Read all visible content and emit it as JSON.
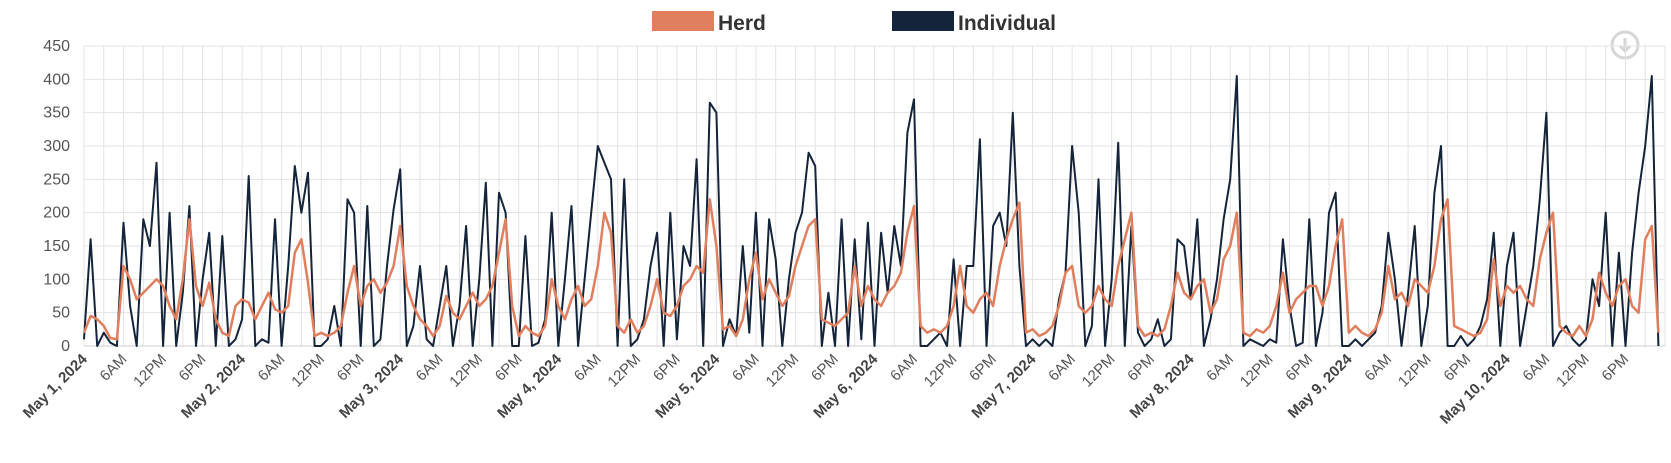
{
  "colors": {
    "herd": "#E07F5E",
    "individual": "#14243A",
    "grid": "#E3E3E3",
    "text": "#555555",
    "download_icon": "#D6D6D6"
  },
  "legend": {
    "herd_label": "Herd",
    "individual_label": "Individual"
  },
  "download_icon": "download-icon",
  "chart_data": {
    "type": "line",
    "title": "",
    "xlabel": "",
    "ylabel": "",
    "ylim": [
      0,
      450
    ],
    "grid": true,
    "legend_position": "top-center",
    "y_ticks": [
      "0",
      "50",
      "100",
      "150",
      "200",
      "250",
      "300",
      "350",
      "400",
      "450"
    ],
    "x_tick_labels": [
      "May 1, 2024",
      "6AM",
      "12PM",
      "6PM",
      "May 2, 2024",
      "6AM",
      "12PM",
      "6PM",
      "May 3, 2024",
      "6AM",
      "12PM",
      "6PM",
      "May 4, 2024",
      "6AM",
      "12PM",
      "6PM",
      "May 5, 2024",
      "6AM",
      "12PM",
      "6PM",
      "May 6, 2024",
      "6AM",
      "12PM",
      "6PM",
      "May 7, 2024",
      "6AM",
      "12PM",
      "6PM",
      "May 8, 2024",
      "6AM",
      "12PM",
      "6PM",
      "May 9, 2024",
      "6AM",
      "12PM",
      "6PM",
      "May 10, 2024",
      "6AM",
      "12PM",
      "6PM"
    ],
    "x_unit": "hours since May 1, 2024 00:00",
    "series": [
      {
        "name": "Herd",
        "color": "#E07F5E",
        "x": [
          0,
          1,
          2,
          3,
          4,
          5,
          6,
          7,
          8,
          9,
          10,
          11,
          12,
          13,
          14,
          15,
          16,
          17,
          18,
          19,
          20,
          21,
          22,
          23,
          24,
          25,
          26,
          27,
          28,
          29,
          30,
          31,
          32,
          33,
          34,
          35,
          36,
          37,
          38,
          39,
          40,
          41,
          42,
          43,
          44,
          45,
          46,
          47,
          48,
          49,
          50,
          51,
          52,
          53,
          54,
          55,
          56,
          57,
          58,
          59,
          60,
          61,
          62,
          63,
          64,
          65,
          66,
          67,
          68,
          69,
          70,
          71,
          72,
          73,
          74,
          75,
          76,
          77,
          78,
          79,
          80,
          81,
          82,
          83,
          84,
          85,
          86,
          87,
          88,
          89,
          90,
          91,
          92,
          93,
          94,
          95,
          96,
          97,
          98,
          99,
          100,
          101,
          102,
          103,
          104,
          105,
          106,
          107,
          108,
          109,
          110,
          111,
          112,
          113,
          114,
          115,
          116,
          117,
          118,
          119,
          120,
          121,
          122,
          123,
          124,
          125,
          126,
          127,
          128,
          129,
          130,
          131,
          132,
          133,
          134,
          135,
          136,
          137,
          138,
          139,
          140,
          141,
          142,
          143,
          144,
          145,
          146,
          147,
          148,
          149,
          150,
          151,
          152,
          153,
          154,
          155,
          156,
          157,
          158,
          159,
          160,
          161,
          162,
          163,
          164,
          165,
          166,
          167,
          168,
          169,
          170,
          171,
          172,
          173,
          174,
          175,
          176,
          177,
          178,
          179,
          180,
          181,
          182,
          183,
          184,
          185,
          186,
          187,
          188,
          189,
          190,
          191,
          192,
          193,
          194,
          195,
          196,
          197,
          198,
          199,
          200,
          201,
          202,
          203,
          204,
          205,
          206,
          207,
          208,
          209,
          210,
          211,
          212,
          213,
          214,
          215,
          216,
          217,
          218,
          219,
          220,
          221,
          222,
          223,
          224,
          225,
          226,
          227,
          228,
          229,
          230,
          231,
          232,
          233,
          234,
          235,
          236,
          237,
          238,
          239
        ],
        "values": [
          20,
          45,
          40,
          30,
          12,
          10,
          120,
          100,
          70,
          80,
          90,
          100,
          90,
          60,
          40,
          100,
          190,
          90,
          60,
          95,
          40,
          20,
          15,
          60,
          70,
          65,
          40,
          60,
          80,
          55,
          50,
          60,
          140,
          160,
          95,
          15,
          20,
          15,
          20,
          30,
          80,
          120,
          60,
          90,
          100,
          80,
          95,
          120,
          180,
          90,
          60,
          40,
          30,
          15,
          30,
          75,
          50,
          40,
          60,
          80,
          60,
          70,
          90,
          140,
          190,
          60,
          15,
          30,
          20,
          15,
          30,
          100,
          60,
          40,
          70,
          90,
          60,
          70,
          120,
          200,
          170,
          30,
          20,
          40,
          20,
          30,
          60,
          100,
          50,
          45,
          60,
          90,
          100,
          120,
          110,
          220,
          150,
          25,
          30,
          15,
          40,
          100,
          140,
          70,
          100,
          80,
          60,
          75,
          120,
          150,
          180,
          190,
          40,
          35,
          30,
          40,
          50,
          120,
          60,
          90,
          70,
          60,
          80,
          90,
          110,
          170,
          210,
          30,
          20,
          25,
          20,
          30,
          60,
          120,
          60,
          50,
          70,
          80,
          60,
          120,
          160,
          190,
          215,
          20,
          25,
          15,
          20,
          30,
          60,
          110,
          120,
          60,
          50,
          60,
          90,
          70,
          60,
          120,
          160,
          200,
          30,
          15,
          20,
          15,
          25,
          60,
          110,
          80,
          70,
          90,
          100,
          50,
          70,
          130,
          150,
          200,
          20,
          15,
          25,
          20,
          30,
          60,
          110,
          50,
          70,
          80,
          90,
          90,
          60,
          90,
          150,
          190,
          20,
          30,
          20,
          15,
          25,
          50,
          120,
          70,
          80,
          60,
          100,
          90,
          80,
          120,
          190,
          220,
          30,
          25,
          20,
          15,
          20,
          40,
          130,
          60,
          90,
          80,
          90,
          70,
          60,
          130,
          170,
          200,
          30,
          20,
          15,
          30,
          15,
          40,
          110,
          80,
          60,
          90,
          100,
          60,
          50,
          160,
          180,
          20
        ]
      },
      {
        "name": "Individual",
        "color": "#14243A",
        "x": [
          0,
          1,
          2,
          3,
          4,
          5,
          6,
          7,
          8,
          9,
          10,
          11,
          12,
          13,
          14,
          15,
          16,
          17,
          18,
          19,
          20,
          21,
          22,
          23,
          24,
          25,
          26,
          27,
          28,
          29,
          30,
          31,
          32,
          33,
          34,
          35,
          36,
          37,
          38,
          39,
          40,
          41,
          42,
          43,
          44,
          45,
          46,
          47,
          48,
          49,
          50,
          51,
          52,
          53,
          54,
          55,
          56,
          57,
          58,
          59,
          60,
          61,
          62,
          63,
          64,
          65,
          66,
          67,
          68,
          69,
          70,
          71,
          72,
          73,
          74,
          75,
          76,
          77,
          78,
          79,
          80,
          81,
          82,
          83,
          84,
          85,
          86,
          87,
          88,
          89,
          90,
          91,
          92,
          93,
          94,
          95,
          96,
          97,
          98,
          99,
          100,
          101,
          102,
          103,
          104,
          105,
          106,
          107,
          108,
          109,
          110,
          111,
          112,
          113,
          114,
          115,
          116,
          117,
          118,
          119,
          120,
          121,
          122,
          123,
          124,
          125,
          126,
          127,
          128,
          129,
          130,
          131,
          132,
          133,
          134,
          135,
          136,
          137,
          138,
          139,
          140,
          141,
          142,
          143,
          144,
          145,
          146,
          147,
          148,
          149,
          150,
          151,
          152,
          153,
          154,
          155,
          156,
          157,
          158,
          159,
          160,
          161,
          162,
          163,
          164,
          165,
          166,
          167,
          168,
          169,
          170,
          171,
          172,
          173,
          174,
          175,
          176,
          177,
          178,
          179,
          180,
          181,
          182,
          183,
          184,
          185,
          186,
          187,
          188,
          189,
          190,
          191,
          192,
          193,
          194,
          195,
          196,
          197,
          198,
          199,
          200,
          201,
          202,
          203,
          204,
          205,
          206,
          207,
          208,
          209,
          210,
          211,
          212,
          213,
          214,
          215,
          216,
          217,
          218,
          219,
          220,
          221,
          222,
          223,
          224,
          225,
          226,
          227,
          228,
          229,
          230,
          231,
          232,
          233,
          234,
          235,
          236,
          237,
          238,
          239
        ],
        "values": [
          10,
          160,
          0,
          20,
          5,
          0,
          185,
          60,
          0,
          190,
          150,
          275,
          0,
          200,
          0,
          80,
          210,
          0,
          100,
          170,
          0,
          165,
          0,
          10,
          40,
          255,
          0,
          10,
          5,
          190,
          0,
          120,
          270,
          200,
          260,
          0,
          0,
          10,
          60,
          0,
          220,
          200,
          0,
          210,
          0,
          10,
          120,
          205,
          265,
          0,
          30,
          120,
          10,
          0,
          60,
          120,
          0,
          60,
          180,
          0,
          100,
          245,
          0,
          230,
          200,
          0,
          0,
          165,
          0,
          5,
          40,
          200,
          0,
          100,
          210,
          0,
          100,
          200,
          300,
          275,
          250,
          0,
          250,
          0,
          10,
          40,
          120,
          170,
          0,
          200,
          10,
          150,
          120,
          280,
          0,
          365,
          350,
          0,
          40,
          15,
          150,
          20,
          200,
          0,
          190,
          130,
          0,
          100,
          170,
          200,
          290,
          270,
          0,
          80,
          0,
          190,
          0,
          160,
          10,
          185,
          0,
          170,
          80,
          180,
          120,
          320,
          370,
          0,
          0,
          10,
          20,
          0,
          130,
          0,
          120,
          120,
          310,
          0,
          180,
          200,
          150,
          350,
          120,
          0,
          10,
          0,
          10,
          0,
          70,
          110,
          300,
          200,
          0,
          30,
          250,
          0,
          100,
          305,
          0,
          180,
          20,
          0,
          10,
          40,
          0,
          10,
          160,
          150,
          70,
          190,
          0,
          40,
          100,
          190,
          250,
          405,
          0,
          10,
          5,
          0,
          10,
          5,
          160,
          60,
          0,
          5,
          190,
          0,
          50,
          200,
          230,
          0,
          0,
          10,
          0,
          10,
          20,
          60,
          170,
          100,
          0,
          80,
          180,
          0,
          60,
          230,
          300,
          0,
          0,
          15,
          0,
          10,
          30,
          70,
          170,
          0,
          120,
          170,
          0,
          60,
          120,
          220,
          350,
          0,
          20,
          30,
          10,
          0,
          10,
          100,
          60,
          200,
          0,
          140,
          0,
          140,
          230,
          300,
          405,
          0
        ]
      }
    ]
  }
}
